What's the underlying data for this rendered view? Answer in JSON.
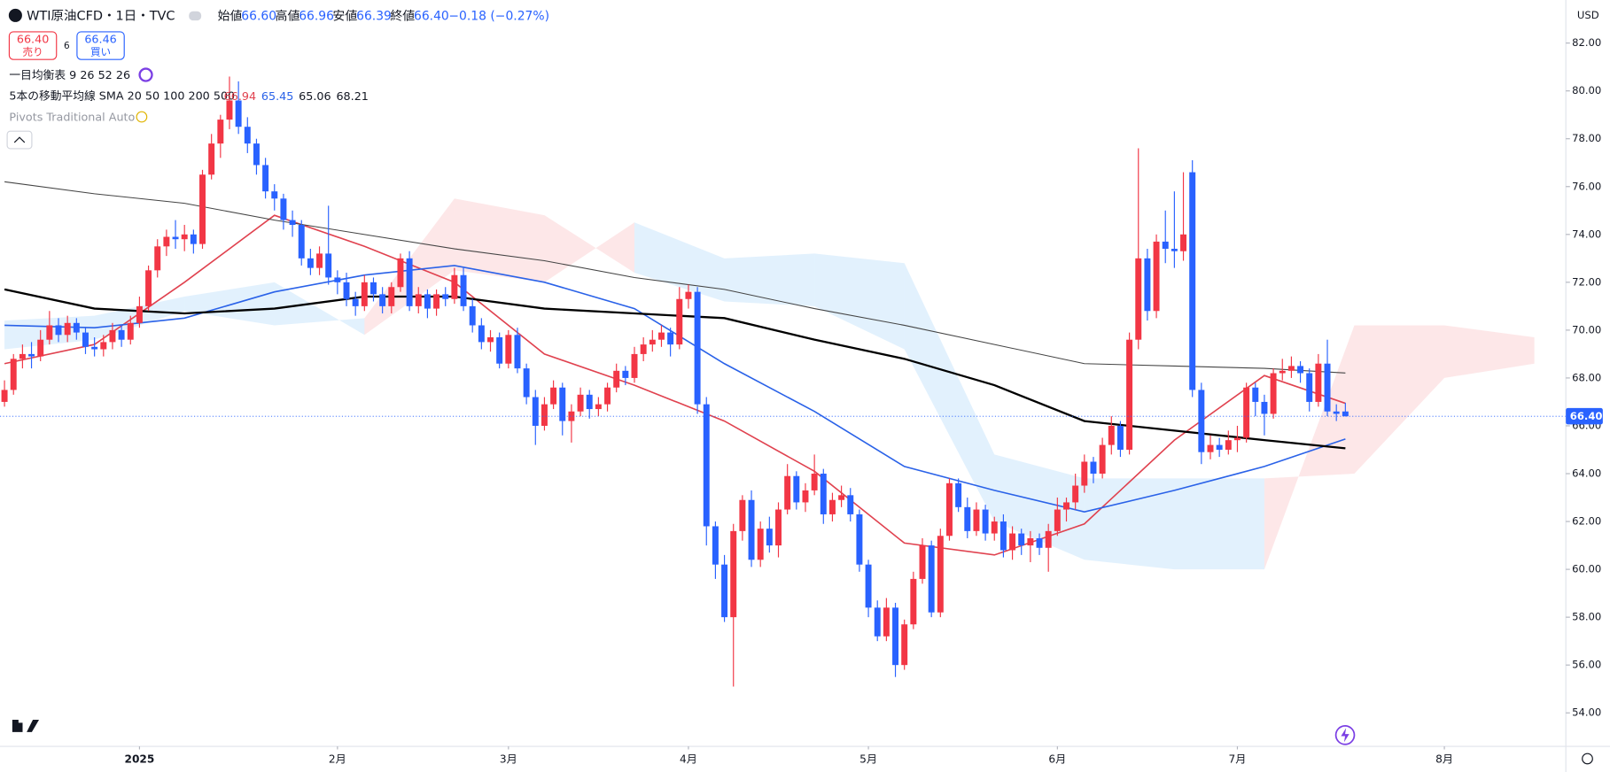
{
  "header": {
    "symbol": "WTI原油CFD・1日・TVC",
    "ohlc": [
      {
        "label": "始値",
        "value": "66.60"
      },
      {
        "label": "高値",
        "value": "66.96"
      },
      {
        "label": "安値",
        "value": "66.39"
      },
      {
        "label": "終値",
        "value": "66.40"
      }
    ],
    "change": "−0.18 (−0.27%)"
  },
  "trade": {
    "sell": "66.40",
    "sell_label": "売り",
    "spread": "6",
    "buy": "66.46",
    "buy_label": "買い"
  },
  "indicators": [
    "一目均衡表 9 26 52 26",
    "5本の移動平均線 SMA 20 50 100 200 500",
    "Pivots Traditional Auto"
  ],
  "currency": "USD",
  "chart_data": {
    "type": "candlestick",
    "up_color": "#f23645",
    "down_color": "#2962ff",
    "xlim": [
      -0.5,
      173.5
    ],
    "ylim": [
      52.6,
      83.8
    ],
    "xticks": [
      {
        "value": 15,
        "label": "2025"
      },
      {
        "value": 37,
        "label": "2月"
      },
      {
        "value": 56,
        "label": "3月"
      },
      {
        "value": 76,
        "label": "4月"
      },
      {
        "value": 96,
        "label": "5月"
      },
      {
        "value": 117,
        "label": "6月"
      },
      {
        "value": 137,
        "label": "7月"
      },
      {
        "value": 160,
        "label": "8月"
      }
    ],
    "yticks": [
      {
        "value": 54,
        "label": "54.00"
      },
      {
        "value": 56,
        "label": "56.00"
      },
      {
        "value": 58,
        "label": "58.00"
      },
      {
        "value": 60,
        "label": "60.00"
      },
      {
        "value": 62,
        "label": "62.00"
      },
      {
        "value": 64,
        "label": "64.00"
      },
      {
        "value": 66,
        "label": "66.00"
      },
      {
        "value": 68,
        "label": "68.00"
      },
      {
        "value": 70,
        "label": "70.00"
      },
      {
        "value": 72,
        "label": "72.00"
      },
      {
        "value": 74,
        "label": "74.00"
      },
      {
        "value": 76,
        "label": "76.00"
      },
      {
        "value": 78,
        "label": "78.00"
      },
      {
        "value": 80,
        "label": "80.00"
      },
      {
        "value": 82,
        "label": "82.00"
      }
    ],
    "last_price": 66.4,
    "last_price_label": "66.40",
    "candles": [
      [
        67.0,
        67.9,
        66.8,
        67.5
      ],
      [
        67.5,
        69.0,
        67.3,
        68.8
      ],
      [
        68.8,
        69.4,
        68.4,
        69.0
      ],
      [
        69.0,
        69.5,
        68.4,
        68.9
      ],
      [
        68.9,
        70.0,
        68.7,
        69.6
      ],
      [
        69.6,
        70.8,
        69.4,
        70.2
      ],
      [
        70.2,
        70.5,
        69.5,
        69.8
      ],
      [
        69.8,
        70.6,
        69.5,
        70.3
      ],
      [
        70.3,
        70.5,
        69.6,
        69.9
      ],
      [
        69.9,
        70.1,
        69.0,
        69.3
      ],
      [
        69.3,
        69.7,
        68.9,
        69.2
      ],
      [
        69.2,
        69.8,
        68.9,
        69.5
      ],
      [
        69.5,
        70.3,
        69.2,
        70.0
      ],
      [
        70.0,
        70.2,
        69.3,
        69.6
      ],
      [
        69.6,
        70.6,
        69.4,
        70.3
      ],
      [
        70.3,
        71.4,
        70.1,
        71.0
      ],
      [
        71.0,
        72.7,
        70.8,
        72.5
      ],
      [
        72.5,
        73.8,
        72.2,
        73.5
      ],
      [
        73.5,
        74.2,
        73.1,
        73.9
      ],
      [
        73.9,
        74.6,
        73.4,
        73.8
      ],
      [
        73.8,
        74.4,
        73.3,
        74.0
      ],
      [
        74.0,
        74.2,
        73.2,
        73.6
      ],
      [
        73.6,
        76.7,
        73.4,
        76.5
      ],
      [
        76.5,
        78.2,
        76.3,
        77.8
      ],
      [
        77.8,
        79.0,
        77.2,
        78.8
      ],
      [
        78.8,
        80.6,
        78.4,
        79.6
      ],
      [
        79.6,
        80.4,
        78.2,
        78.5
      ],
      [
        78.5,
        78.9,
        77.4,
        77.8
      ],
      [
        77.8,
        78.0,
        76.5,
        76.9
      ],
      [
        76.9,
        77.2,
        75.5,
        75.8
      ],
      [
        75.8,
        76.1,
        75.0,
        75.5
      ],
      [
        75.5,
        75.7,
        74.2,
        74.6
      ],
      [
        74.6,
        75.0,
        73.9,
        74.4
      ],
      [
        74.4,
        74.6,
        72.7,
        73.0
      ],
      [
        73.0,
        73.4,
        72.3,
        72.6
      ],
      [
        72.6,
        73.5,
        72.3,
        73.2
      ],
      [
        73.2,
        75.2,
        71.9,
        72.2
      ],
      [
        72.2,
        72.5,
        71.5,
        72.0
      ],
      [
        72.0,
        72.4,
        71.0,
        71.3
      ],
      [
        71.3,
        71.6,
        70.6,
        71.0
      ],
      [
        71.0,
        72.3,
        70.8,
        72.0
      ],
      [
        72.0,
        72.2,
        71.2,
        71.5
      ],
      [
        71.5,
        71.8,
        70.7,
        71.0
      ],
      [
        71.0,
        72.0,
        70.7,
        71.8
      ],
      [
        71.8,
        73.2,
        71.6,
        73.0
      ],
      [
        73.0,
        73.3,
        70.8,
        71.0
      ],
      [
        71.0,
        71.8,
        70.7,
        71.5
      ],
      [
        71.5,
        71.7,
        70.5,
        70.9
      ],
      [
        70.9,
        71.7,
        70.6,
        71.5
      ],
      [
        71.5,
        71.8,
        71.0,
        71.3
      ],
      [
        71.3,
        72.6,
        71.1,
        72.3
      ],
      [
        72.3,
        72.6,
        70.8,
        71.0
      ],
      [
        71.0,
        71.3,
        69.9,
        70.2
      ],
      [
        70.2,
        70.5,
        69.2,
        69.5
      ],
      [
        69.5,
        70.0,
        69.1,
        69.7
      ],
      [
        69.7,
        69.9,
        68.4,
        68.6
      ],
      [
        68.6,
        70.0,
        68.4,
        69.8
      ],
      [
        69.8,
        70.1,
        68.2,
        68.4
      ],
      [
        68.4,
        68.6,
        66.9,
        67.2
      ],
      [
        67.2,
        67.5,
        65.2,
        66.0
      ],
      [
        66.0,
        67.2,
        65.8,
        66.9
      ],
      [
        66.9,
        67.9,
        66.7,
        67.6
      ],
      [
        67.6,
        67.8,
        65.6,
        66.2
      ],
      [
        66.2,
        66.9,
        65.3,
        66.6
      ],
      [
        66.6,
        67.6,
        66.4,
        67.3
      ],
      [
        67.3,
        67.5,
        66.3,
        66.7
      ],
      [
        66.7,
        67.2,
        66.4,
        66.9
      ],
      [
        66.9,
        67.8,
        66.6,
        67.6
      ],
      [
        67.6,
        68.6,
        67.4,
        68.3
      ],
      [
        68.3,
        68.5,
        67.7,
        68.0
      ],
      [
        68.0,
        69.3,
        67.8,
        69.0
      ],
      [
        69.0,
        69.7,
        68.7,
        69.4
      ],
      [
        69.4,
        70.0,
        69.1,
        69.6
      ],
      [
        69.6,
        70.2,
        69.3,
        69.9
      ],
      [
        69.9,
        70.1,
        68.9,
        69.4
      ],
      [
        69.4,
        71.8,
        69.2,
        71.3
      ],
      [
        71.3,
        71.9,
        70.9,
        71.6
      ],
      [
        71.6,
        71.8,
        66.5,
        66.9
      ],
      [
        66.9,
        67.2,
        61.0,
        61.8
      ],
      [
        61.8,
        62.0,
        59.6,
        60.2
      ],
      [
        60.2,
        60.6,
        57.8,
        58.0
      ],
      [
        58.0,
        61.9,
        55.1,
        61.6
      ],
      [
        61.6,
        63.1,
        61.2,
        62.9
      ],
      [
        62.9,
        63.3,
        60.1,
        60.4
      ],
      [
        60.4,
        62.0,
        60.1,
        61.7
      ],
      [
        61.7,
        62.2,
        60.7,
        61.0
      ],
      [
        61.0,
        62.8,
        60.5,
        62.5
      ],
      [
        62.5,
        64.4,
        62.3,
        63.9
      ],
      [
        63.9,
        64.1,
        62.5,
        62.8
      ],
      [
        62.8,
        63.6,
        62.4,
        63.3
      ],
      [
        63.3,
        64.8,
        63.1,
        64.0
      ],
      [
        64.0,
        64.2,
        61.9,
        62.3
      ],
      [
        62.3,
        63.2,
        62.0,
        62.9
      ],
      [
        62.9,
        63.5,
        62.6,
        63.1
      ],
      [
        63.1,
        63.4,
        62.0,
        62.3
      ],
      [
        62.3,
        62.5,
        59.9,
        60.2
      ],
      [
        60.2,
        60.4,
        58.0,
        58.4
      ],
      [
        58.4,
        58.7,
        57.0,
        57.2
      ],
      [
        57.2,
        58.8,
        57.0,
        58.4
      ],
      [
        58.4,
        58.6,
        55.5,
        56.0
      ],
      [
        56.0,
        57.9,
        55.8,
        57.7
      ],
      [
        57.7,
        59.9,
        57.5,
        59.6
      ],
      [
        59.6,
        61.3,
        59.4,
        61.0
      ],
      [
        61.0,
        61.2,
        58.0,
        58.2
      ],
      [
        58.2,
        61.7,
        58.0,
        61.4
      ],
      [
        61.4,
        63.8,
        61.2,
        63.6
      ],
      [
        63.6,
        63.8,
        62.4,
        62.6
      ],
      [
        62.6,
        63.0,
        61.3,
        61.6
      ],
      [
        61.6,
        62.8,
        61.4,
        62.5
      ],
      [
        62.5,
        62.7,
        61.2,
        61.5
      ],
      [
        61.5,
        62.2,
        61.2,
        62.0
      ],
      [
        62.0,
        62.3,
        60.5,
        60.8
      ],
      [
        60.8,
        61.8,
        60.4,
        61.5
      ],
      [
        61.5,
        61.7,
        60.6,
        61.0
      ],
      [
        61.0,
        61.6,
        60.3,
        61.3
      ],
      [
        61.3,
        61.5,
        60.6,
        60.9
      ],
      [
        60.9,
        61.9,
        59.9,
        61.6
      ],
      [
        61.6,
        63.0,
        61.4,
        62.5
      ],
      [
        62.5,
        63.0,
        62.0,
        62.8
      ],
      [
        62.8,
        64.0,
        62.5,
        63.5
      ],
      [
        63.5,
        64.8,
        63.2,
        64.5
      ],
      [
        64.5,
        64.7,
        63.6,
        64.0
      ],
      [
        64.0,
        65.5,
        63.8,
        65.2
      ],
      [
        65.2,
        66.4,
        64.8,
        66.0
      ],
      [
        66.0,
        66.2,
        64.7,
        65.0
      ],
      [
        65.0,
        69.9,
        64.8,
        69.6
      ],
      [
        69.6,
        77.6,
        69.2,
        73.0
      ],
      [
        73.0,
        73.4,
        70.4,
        70.8
      ],
      [
        70.8,
        74.0,
        70.5,
        73.7
      ],
      [
        73.7,
        75.0,
        72.8,
        73.4
      ],
      [
        73.4,
        75.8,
        72.6,
        73.3
      ],
      [
        73.3,
        76.6,
        72.9,
        74.0
      ],
      [
        76.6,
        77.1,
        67.2,
        67.5
      ],
      [
        67.5,
        67.8,
        64.4,
        64.9
      ],
      [
        64.9,
        65.6,
        64.6,
        65.2
      ],
      [
        65.2,
        65.5,
        64.7,
        65.0
      ],
      [
        65.0,
        65.8,
        64.8,
        65.4
      ],
      [
        65.4,
        66.0,
        64.9,
        65.5
      ],
      [
        65.5,
        67.8,
        65.3,
        67.6
      ],
      [
        67.6,
        67.8,
        66.4,
        67.0
      ],
      [
        67.0,
        67.3,
        65.6,
        66.5
      ],
      [
        66.5,
        68.4,
        66.3,
        68.2
      ],
      [
        68.2,
        68.8,
        67.9,
        68.3
      ],
      [
        68.3,
        68.9,
        68.0,
        68.5
      ],
      [
        68.5,
        68.7,
        67.8,
        68.2
      ],
      [
        68.2,
        68.4,
        66.6,
        67.0
      ],
      [
        67.0,
        69.0,
        66.8,
        68.6
      ],
      [
        68.6,
        69.6,
        66.4,
        66.6
      ],
      [
        66.6,
        66.9,
        66.2,
        66.5
      ],
      [
        66.6,
        66.96,
        66.39,
        66.4
      ]
    ],
    "line_x": [
      0,
      10,
      20,
      30,
      40,
      50,
      60,
      70,
      80,
      90,
      100,
      110,
      120,
      130,
      140,
      149
    ],
    "series": [
      {
        "color": "#e0424f",
        "width": 1.4,
        "last_label": "66.94",
        "values": [
          68.6,
          69.4,
          72.0,
          74.8,
          73.5,
          72.0,
          69.0,
          67.7,
          66.2,
          64.1,
          61.1,
          60.6,
          61.9,
          65.4,
          68.1,
          66.94
        ]
      },
      {
        "color": "#2a62e8",
        "width": 1.4,
        "last_label": "65.45",
        "values": [
          70.2,
          70.1,
          70.5,
          71.6,
          72.3,
          72.7,
          72.0,
          70.9,
          68.6,
          66.6,
          64.3,
          63.3,
          62.4,
          63.3,
          64.3,
          65.45
        ]
      },
      {
        "color": "#000000",
        "width": 2,
        "last_label": "65.06",
        "values": [
          71.7,
          70.9,
          70.7,
          70.9,
          71.4,
          71.4,
          70.9,
          70.7,
          70.5,
          69.6,
          68.8,
          67.7,
          66.2,
          65.8,
          65.4,
          65.06
        ]
      },
      {
        "color": "#444444",
        "width": 0.9,
        "last_label": "68.21",
        "values": [
          76.2,
          75.7,
          75.3,
          74.6,
          74.0,
          73.4,
          72.9,
          72.2,
          71.7,
          70.9,
          70.2,
          69.4,
          68.6,
          68.5,
          68.4,
          68.21
        ]
      }
    ],
    "cloud": {
      "x": [
        0,
        10,
        20,
        30,
        40,
        50,
        60,
        70,
        80,
        90,
        100,
        110,
        120,
        130,
        140,
        150,
        160,
        170
      ],
      "span_a": [
        70.4,
        70.6,
        71.4,
        72.0,
        69.8,
        72.5,
        72.0,
        74.5,
        73.0,
        73.2,
        72.8,
        64.8,
        63.8,
        63.8,
        63.8,
        64.0,
        68.0,
        68.6
      ],
      "span_b": [
        69.2,
        69.6,
        70.8,
        70.2,
        70.5,
        75.5,
        74.8,
        72.4,
        71.2,
        71.0,
        69.2,
        62.0,
        60.4,
        60.0,
        60.0,
        70.2,
        70.2,
        69.7
      ],
      "up_color": "rgba(33,150,243,0.13)",
      "down_color": "rgba(242,54,69,0.12)"
    }
  }
}
